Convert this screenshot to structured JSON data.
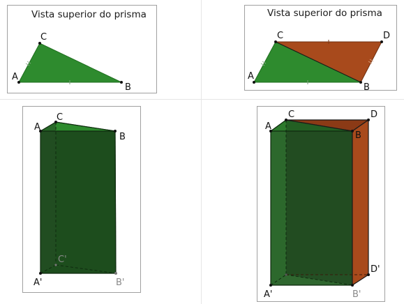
{
  "panels": {
    "top_left": {
      "title": "Vista superior do prisma",
      "points": {
        "a": "A",
        "b": "B",
        "c": "C"
      }
    },
    "top_right": {
      "title": "Vista superior do prisma",
      "points": {
        "a": "A",
        "b": "B",
        "c": "C",
        "d": "D"
      }
    },
    "bottom_left": {
      "points": {
        "a": "A",
        "b": "B",
        "c": "C",
        "a_prime": "A'",
        "b_prime": "B'",
        "c_prime": "C'"
      }
    },
    "bottom_right": {
      "points": {
        "a": "A",
        "b": "B",
        "c": "C",
        "d": "D",
        "a_prime": "A'",
        "b_prime": "B'",
        "d_prime": "D'"
      }
    }
  },
  "colors": {
    "green_face": "#2e8b2e",
    "green_dark": "#1b4a1b",
    "brown_face": "#a84a1c",
    "panel_border": "#a0a0a0"
  }
}
